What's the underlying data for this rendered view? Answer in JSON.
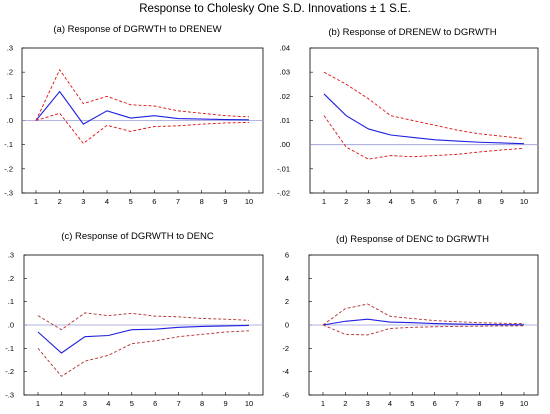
{
  "title": "Response to Cholesky One S.D. Innovations ± 1 S.E.",
  "colors": {
    "response": "#2020e0",
    "band": "#e01010",
    "band_alt": "#b0302a",
    "zero": "#9a9ad8",
    "frame": "#000000"
  },
  "chart_data": [
    {
      "type": "line",
      "title": "(a) Response of DGRWTH to DRENEW",
      "x": [
        1,
        2,
        3,
        4,
        5,
        6,
        7,
        8,
        9,
        10
      ],
      "ylim": [
        -0.3,
        0.3
      ],
      "y_ticks": [
        ".3",
        ".2",
        ".1",
        ".0",
        "-.1",
        "-.2",
        "-.3"
      ],
      "y_tick_values": [
        0.3,
        0.2,
        0.1,
        0.0,
        -0.1,
        -0.2,
        -0.3
      ],
      "x_ticks": [
        "1",
        "2",
        "3",
        "4",
        "5",
        "6",
        "7",
        "8",
        "9",
        "10"
      ],
      "series": [
        {
          "values": [
            0.0,
            0.12,
            -0.015,
            0.04,
            0.01,
            0.02,
            0.008,
            0.006,
            0.004,
            0.003
          ],
          "style": "solid",
          "color_key": "response"
        },
        {
          "values": [
            0.0,
            0.21,
            0.07,
            0.1,
            0.065,
            0.06,
            0.04,
            0.03,
            0.02,
            0.015
          ],
          "style": "dashed",
          "color_key": "band"
        },
        {
          "values": [
            0.0,
            0.03,
            -0.095,
            -0.02,
            -0.045,
            -0.025,
            -0.022,
            -0.015,
            -0.01,
            -0.008
          ],
          "style": "dashed",
          "color_key": "band"
        }
      ]
    },
    {
      "type": "line",
      "title": "(b) Response of DRENEW to DGRWTH",
      "x": [
        1,
        2,
        3,
        4,
        5,
        6,
        7,
        8,
        9,
        10
      ],
      "ylim": [
        -0.02,
        0.04
      ],
      "y_ticks": [
        ".04",
        ".03",
        ".02",
        ".01",
        ".00",
        "-.01",
        "-.02"
      ],
      "y_tick_values": [
        0.04,
        0.03,
        0.02,
        0.01,
        0.0,
        -0.01,
        -0.02
      ],
      "x_ticks": [
        "1",
        "2",
        "3",
        "4",
        "5",
        "6",
        "7",
        "8",
        "9",
        "10"
      ],
      "series": [
        {
          "values": [
            0.021,
            0.012,
            0.0065,
            0.004,
            0.003,
            0.002,
            0.0015,
            0.001,
            0.0007,
            0.0004
          ],
          "style": "solid",
          "color_key": "response"
        },
        {
          "values": [
            0.03,
            0.025,
            0.019,
            0.012,
            0.01,
            0.008,
            0.006,
            0.0045,
            0.0035,
            0.0025
          ],
          "style": "dashed",
          "color_key": "band"
        },
        {
          "values": [
            0.012,
            -0.001,
            -0.006,
            -0.0045,
            -0.005,
            -0.0045,
            -0.004,
            -0.003,
            -0.0022,
            -0.0015
          ],
          "style": "dashed",
          "color_key": "band"
        }
      ]
    },
    {
      "type": "line",
      "title": "(c) Response of DGRWTH to DENC",
      "x": [
        1,
        2,
        3,
        4,
        5,
        6,
        7,
        8,
        9,
        10
      ],
      "ylim": [
        -0.3,
        0.3
      ],
      "y_ticks": [
        ".3",
        ".2",
        ".1",
        ".0",
        "-.1",
        "-.2",
        "-.3"
      ],
      "y_tick_values": [
        0.3,
        0.2,
        0.1,
        0.0,
        -0.1,
        -0.2,
        -0.3
      ],
      "x_ticks": [
        "1",
        "2",
        "3",
        "4",
        "5",
        "6",
        "7",
        "8",
        "9",
        "10"
      ],
      "series": [
        {
          "values": [
            -0.03,
            -0.12,
            -0.05,
            -0.045,
            -0.02,
            -0.018,
            -0.01,
            -0.006,
            -0.004,
            -0.002
          ],
          "style": "solid",
          "color_key": "response"
        },
        {
          "values": [
            0.04,
            -0.02,
            0.052,
            0.04,
            0.05,
            0.038,
            0.035,
            0.028,
            0.025,
            0.02
          ],
          "style": "dashed",
          "color_key": "band_alt"
        },
        {
          "values": [
            -0.1,
            -0.22,
            -0.155,
            -0.13,
            -0.08,
            -0.068,
            -0.05,
            -0.04,
            -0.03,
            -0.025
          ],
          "style": "dashed",
          "color_key": "band_alt"
        }
      ]
    },
    {
      "type": "line",
      "title": "(d) Response of DENC to DGRWTH",
      "x": [
        1,
        2,
        3,
        4,
        5,
        6,
        7,
        8,
        9,
        10
      ],
      "ylim": [
        -6,
        6
      ],
      "y_ticks": [
        "6",
        "4",
        "2",
        "0",
        "-2",
        "-4",
        "-6"
      ],
      "y_tick_values": [
        6,
        4,
        2,
        0,
        -2,
        -4,
        -6
      ],
      "x_ticks": [
        "1",
        "2",
        "3",
        "4",
        "5",
        "6",
        "7",
        "8",
        "9",
        "10"
      ],
      "series": [
        {
          "values": [
            0.0,
            0.32,
            0.5,
            0.25,
            0.2,
            0.12,
            0.08,
            0.05,
            0.03,
            0.02
          ],
          "style": "solid",
          "color_key": "response"
        },
        {
          "values": [
            0.0,
            1.4,
            1.8,
            0.75,
            0.55,
            0.38,
            0.28,
            0.2,
            0.15,
            0.12
          ],
          "style": "dashed",
          "color_key": "band_alt"
        },
        {
          "values": [
            0.0,
            -0.8,
            -0.85,
            -0.3,
            -0.2,
            -0.15,
            -0.12,
            -0.1,
            -0.08,
            -0.07
          ],
          "style": "dashed",
          "color_key": "band_alt"
        }
      ]
    }
  ]
}
